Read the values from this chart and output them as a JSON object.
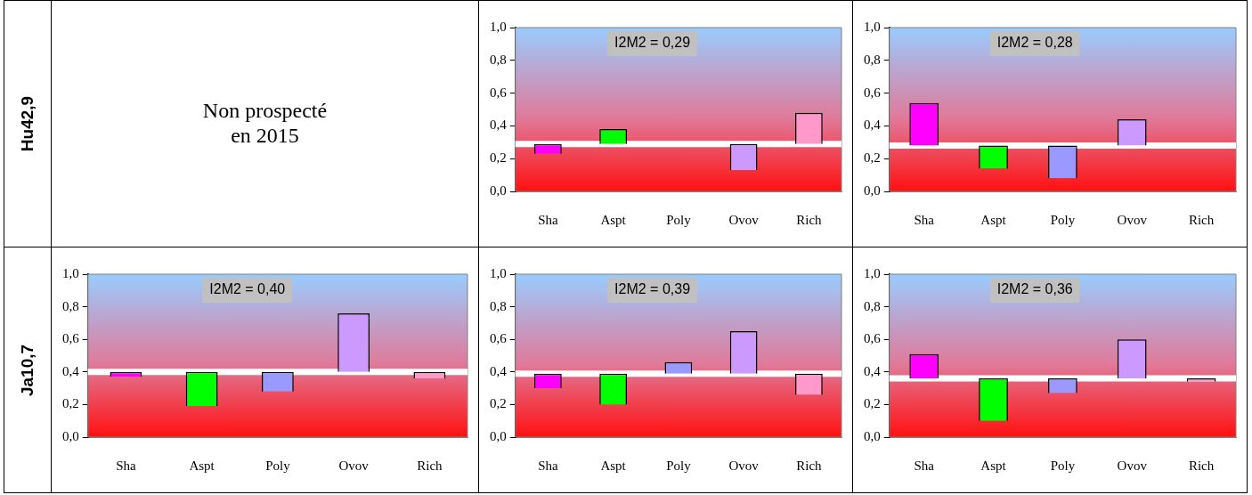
{
  "chart_data": [
    {
      "type": "other",
      "title": "Hu42,9"
    },
    {
      "type": "other",
      "title": "Non prospecté\nen 2015"
    },
    {
      "type": "bar",
      "categories": [
        "Sha",
        "Aspt",
        "Poly",
        "Ovov",
        "Rich"
      ],
      "colors": [
        "#ff00ff",
        "#00ff00",
        "#9999ff",
        "#cc99ff",
        "#ff99cc"
      ],
      "base": [
        0.29,
        0.29,
        null,
        0.29,
        0.29
      ],
      "values": [
        -0.06,
        0.09,
        null,
        -0.16,
        0.19
      ],
      "ylim": [
        0,
        1
      ],
      "yticks": [
        {
          "value": 0,
          "label": "0,0"
        },
        {
          "value": 0.2,
          "label": "0,2"
        },
        {
          "value": 0.4,
          "label": "0,4"
        },
        {
          "value": 0.6,
          "label": "0,6"
        },
        {
          "value": 0.8,
          "label": "0,8"
        },
        {
          "value": 1,
          "label": "1,0"
        }
      ],
      "ref_lines": [
        {
          "axis": "y",
          "value": 0.29,
          "color": "#ffffff"
        }
      ],
      "annotations": [
        "I2M2 = 0,29"
      ]
    },
    {
      "type": "bar",
      "categories": [
        "Sha",
        "Aspt",
        "Poly",
        "Ovov",
        "Rich"
      ],
      "colors": [
        "#ff00ff",
        "#00ff00",
        "#9999ff",
        "#cc99ff",
        "#ff99cc"
      ],
      "base": [
        0.28,
        0.28,
        0.28,
        0.28,
        null
      ],
      "values": [
        0.26,
        -0.14,
        -0.2,
        0.16,
        null
      ],
      "ylim": [
        0,
        1
      ],
      "yticks": [
        {
          "value": 0,
          "label": "0,0"
        },
        {
          "value": 0.2,
          "label": "0,2"
        },
        {
          "value": 0.4,
          "label": "0,4"
        },
        {
          "value": 0.6,
          "label": "0,6"
        },
        {
          "value": 0.8,
          "label": "0,8"
        },
        {
          "value": 1,
          "label": "1,0"
        }
      ],
      "ref_lines": [
        {
          "axis": "y",
          "value": 0.28,
          "color": "#ffffff"
        }
      ],
      "annotations": [
        "I2M2 = 0,28"
      ]
    },
    {
      "type": "other",
      "title": "Ja10,7"
    },
    {
      "type": "bar",
      "categories": [
        "Sha",
        "Aspt",
        "Poly",
        "Ovov",
        "Rich"
      ],
      "colors": [
        "#ff00ff",
        "#00ff00",
        "#9999ff",
        "#cc99ff",
        "#ff99cc"
      ],
      "base": [
        0.4,
        0.4,
        0.4,
        0.4,
        0.4
      ],
      "values": [
        -0.03,
        -0.21,
        -0.12,
        0.36,
        -0.04
      ],
      "ylim": [
        0,
        1
      ],
      "yticks": [
        {
          "value": 0,
          "label": "0,0"
        },
        {
          "value": 0.2,
          "label": "0,2"
        },
        {
          "value": 0.4,
          "label": "0,4"
        },
        {
          "value": 0.6,
          "label": "0,6"
        },
        {
          "value": 0.8,
          "label": "0,8"
        },
        {
          "value": 1,
          "label": "1,0"
        }
      ],
      "ref_lines": [
        {
          "axis": "y",
          "value": 0.4,
          "color": "#ffffff"
        }
      ],
      "annotations": [
        "I2M2 = 0,40"
      ]
    },
    {
      "type": "bar",
      "categories": [
        "Sha",
        "Aspt",
        "Poly",
        "Ovov",
        "Rich"
      ],
      "colors": [
        "#ff00ff",
        "#00ff00",
        "#9999ff",
        "#cc99ff",
        "#ff99cc"
      ],
      "base": [
        0.39,
        0.39,
        0.39,
        0.39,
        0.39
      ],
      "values": [
        -0.09,
        -0.19,
        0.07,
        0.26,
        -0.13
      ],
      "ylim": [
        0,
        1
      ],
      "yticks": [
        {
          "value": 0,
          "label": "0,0"
        },
        {
          "value": 0.2,
          "label": "0,2"
        },
        {
          "value": 0.4,
          "label": "0,4"
        },
        {
          "value": 0.6,
          "label": "0,6"
        },
        {
          "value": 0.8,
          "label": "0,8"
        },
        {
          "value": 1,
          "label": "1,0"
        }
      ],
      "ref_lines": [
        {
          "axis": "y",
          "value": 0.39,
          "color": "#ffffff"
        }
      ],
      "annotations": [
        "I2M2 = 0,39"
      ]
    },
    {
      "type": "bar",
      "categories": [
        "Sha",
        "Aspt",
        "Poly",
        "Ovov",
        "Rich"
      ],
      "colors": [
        "#ff00ff",
        "#00ff00",
        "#9999ff",
        "#cc99ff",
        "#ff99cc"
      ],
      "base": [
        0.36,
        0.36,
        0.36,
        0.36,
        0.36
      ],
      "values": [
        0.15,
        -0.26,
        -0.09,
        0.24,
        -0.02
      ],
      "ylim": [
        0,
        1
      ],
      "yticks": [
        {
          "value": 0,
          "label": "0,0"
        },
        {
          "value": 0.2,
          "label": "0,2"
        },
        {
          "value": 0.4,
          "label": "0,4"
        },
        {
          "value": 0.6,
          "label": "0,6"
        },
        {
          "value": 0.8,
          "label": "0,8"
        },
        {
          "value": 1,
          "label": "1,0"
        }
      ],
      "ref_lines": [
        {
          "axis": "y",
          "value": 0.36,
          "color": "#ffffff"
        }
      ],
      "annotations": [
        "I2M2 = 0,36"
      ]
    }
  ]
}
